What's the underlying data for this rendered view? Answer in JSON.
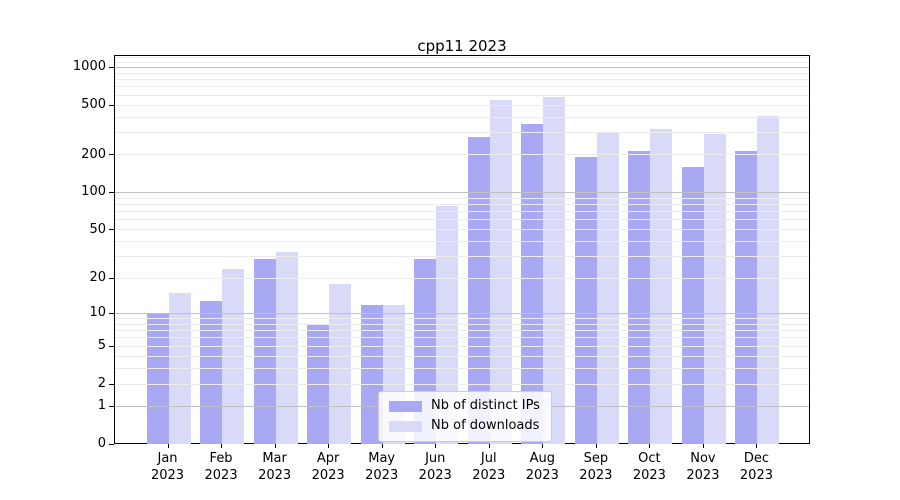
{
  "title": "cpp11 2023",
  "chart_data": {
    "type": "bar",
    "categories": [
      "Jan",
      "Feb",
      "Mar",
      "Apr",
      "May",
      "Jun",
      "Jul",
      "Aug",
      "Sep",
      "Oct",
      "Nov",
      "Dec"
    ],
    "year_label": "2023",
    "series": [
      {
        "name": "Nb of distinct IPs",
        "color": "#a8a8f3",
        "values": [
          10,
          13,
          29,
          8,
          12,
          29,
          283,
          358,
          194,
          217,
          163,
          217
        ]
      },
      {
        "name": "Nb of downloads",
        "color": "#d9d9f8",
        "values": [
          15,
          24,
          33,
          18,
          12,
          78,
          560,
          590,
          307,
          326,
          299,
          414
        ]
      }
    ],
    "title": "cpp11 2023",
    "xlabel": "",
    "ylabel": "",
    "yscale": "log10(1+x)",
    "ylim": [
      0,
      1240
    ],
    "y_tick_values": [
      0,
      1,
      2,
      5,
      10,
      20,
      50,
      100,
      200,
      500,
      1000
    ],
    "y_tick_labels": [
      "0",
      "1",
      "2",
      "5",
      "10",
      "20",
      "50",
      "100",
      "200",
      "500",
      "1000"
    ],
    "grid": "horizontal major+minor",
    "legend_position": "lower center"
  },
  "colors": {
    "background": "#ffffff",
    "spine": "#000000",
    "grid_major": "#c0c0c0",
    "grid_minor": "#ececec",
    "bar_distinct_ips": "#a8a8f3",
    "bar_downloads": "#d9d9f8",
    "legend_border": "#cccccc"
  }
}
